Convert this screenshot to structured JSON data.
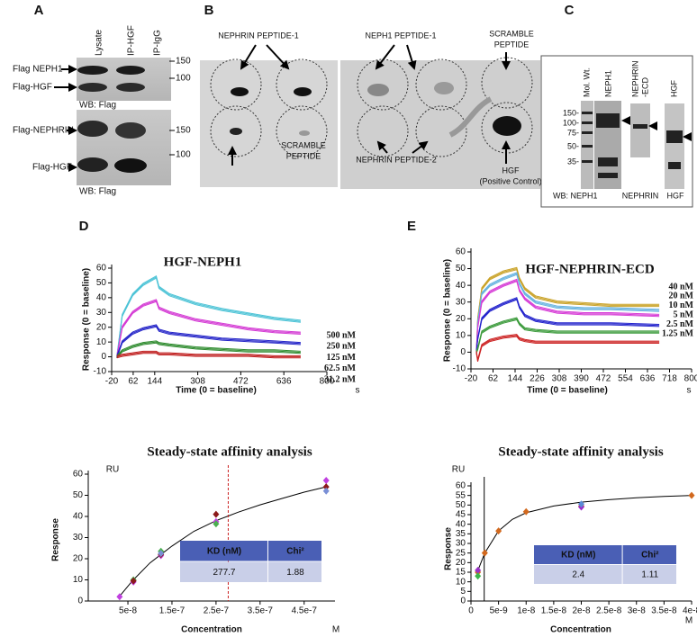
{
  "panels": {
    "A": {
      "label": "A",
      "lanes": [
        "Lysate",
        "IP-HGF",
        "IP-IgG"
      ],
      "blot1": {
        "bands": [
          "Flag NEPH1",
          "Flag-HGF"
        ],
        "markers": [
          "150",
          "100"
        ],
        "wb": "WB: Flag"
      },
      "blot2": {
        "bands": [
          "Flag-NEPHRIN",
          "Flag-HGF"
        ],
        "markers": [
          "150",
          "100"
        ],
        "wb": "WB: Flag"
      }
    },
    "B": {
      "label": "B",
      "nephrin_peptide_1": "NEPHRIN PEPTIDE-1",
      "neph1_peptide_1": "NEPH1 PEPTIDE-1",
      "scramble_top": [
        "SCRAMBLE",
        "PEPTIDE"
      ],
      "scramble_bottom": [
        "SCRAMBLE",
        "PEPTIDE"
      ],
      "nephrin_peptide_2": "NEPHRIN PEPTIDE-2",
      "hgf": [
        "HGF",
        "(Positive Control)"
      ]
    },
    "C": {
      "label": "C",
      "lanes": [
        "Mol. Wt.",
        "NEPH1",
        "HGF"
      ],
      "nephrin_lane": [
        "NEPHRIN",
        "-ECD"
      ],
      "markers": [
        "150-",
        "100-",
        "75-",
        "50-",
        "35-"
      ],
      "wb": [
        "WB: NEPH1",
        "NEPHRIN",
        "HGF"
      ]
    }
  },
  "chart_data": [
    {
      "type": "line",
      "panel": "D",
      "title": "HGF-NEPH1",
      "xlabel": "Time (0 = baseline)",
      "xunit": "s",
      "ylabel": "Response (0 = baseline)",
      "xlim": [
        -20,
        800
      ],
      "xticks": [
        -20,
        62,
        144,
        308,
        472,
        636,
        800
      ],
      "ylim": [
        -10,
        60
      ],
      "yticks": [
        -10,
        0,
        10,
        20,
        30,
        40,
        50,
        60
      ],
      "x": [
        0,
        20,
        60,
        100,
        150,
        160,
        200,
        300,
        400,
        500,
        600,
        700
      ],
      "series": [
        {
          "name": "500 nM",
          "color": "#4cc3d6",
          "values": [
            0,
            28,
            42,
            49,
            54,
            47,
            42,
            36,
            32,
            29,
            26,
            24
          ]
        },
        {
          "name": "250 nM",
          "color": "#d43ad4",
          "values": [
            0,
            20,
            30,
            35,
            38,
            33,
            30,
            25,
            22,
            19,
            17,
            16
          ]
        },
        {
          "name": "125 nM",
          "color": "#2424c8",
          "values": [
            0,
            10,
            16,
            19,
            21,
            18,
            16,
            14,
            12,
            11,
            10,
            9
          ]
        },
        {
          "name": "62.5 nM",
          "color": "#2e8b2e",
          "values": [
            0,
            4,
            7,
            9,
            10,
            9,
            8,
            6,
            5,
            4,
            4,
            3
          ]
        },
        {
          "name": "31.2 nM",
          "color": "#c02020",
          "values": [
            0,
            1,
            2,
            3,
            3,
            2,
            2,
            1,
            1,
            1,
            0,
            0
          ]
        }
      ]
    },
    {
      "type": "line",
      "panel": "E",
      "title": "HGF-NEPHRIN-ECD",
      "xlabel": "Time (0 = baseline)",
      "xunit": "s",
      "ylabel": "Response (0 = baseline)",
      "xlim": [
        -20,
        800
      ],
      "xticks": [
        -20,
        62,
        144,
        226,
        308,
        390,
        472,
        554,
        636,
        718,
        800
      ],
      "ylim": [
        -10,
        60
      ],
      "yticks": [
        -10,
        0,
        10,
        20,
        30,
        40,
        50,
        60
      ],
      "x": [
        0,
        5,
        20,
        50,
        100,
        150,
        160,
        180,
        220,
        300,
        400,
        500,
        680
      ],
      "series": [
        {
          "name": "40 nM",
          "color": "#c9a227",
          "values": [
            0,
            20,
            38,
            44,
            48,
            50,
            44,
            38,
            33,
            30,
            29,
            28,
            28
          ]
        },
        {
          "name": "20 nM",
          "color": "#66b3e0",
          "values": [
            0,
            18,
            35,
            40,
            44,
            47,
            41,
            35,
            30,
            27,
            26,
            26,
            25
          ]
        },
        {
          "name": "10 nM",
          "color": "#d63bd6",
          "values": [
            0,
            15,
            30,
            36,
            40,
            43,
            37,
            32,
            27,
            24,
            23,
            23,
            22
          ]
        },
        {
          "name": "5 nM",
          "color": "#2222cc",
          "values": [
            0,
            8,
            20,
            25,
            29,
            32,
            27,
            22,
            19,
            17,
            17,
            17,
            16
          ]
        },
        {
          "name": "2.5 nM",
          "color": "#3a9a3a",
          "values": [
            0,
            2,
            12,
            15,
            18,
            20,
            17,
            14,
            13,
            12,
            12,
            12,
            12
          ]
        },
        {
          "name": "1.25 nM",
          "color": "#cc2222",
          "values": [
            0,
            -5,
            4,
            7,
            9,
            10,
            8,
            7,
            6,
            6,
            6,
            6,
            6
          ]
        }
      ]
    },
    {
      "type": "scatter",
      "title": "Steady-state affinity analysis",
      "yunit": "RU",
      "ylabel": "Response",
      "xlabel": "Concentration",
      "xunit": "M",
      "xlim": [
        -4e-08,
        5.2e-07
      ],
      "xticks": [
        5e-08,
        1.5e-07,
        2.5e-07,
        3.5e-07,
        4.5e-07
      ],
      "ylim": [
        0,
        60
      ],
      "yticks": [
        0,
        10,
        20,
        30,
        40,
        50,
        60
      ],
      "series": [
        {
          "color": "#c040e0",
          "x": [
            3.12e-08,
            6.25e-08,
            1.25e-07,
            2.5e-07,
            5e-07
          ],
          "values": [
            2,
            9,
            21.5,
            37.5,
            57
          ]
        },
        {
          "color": "#4caf50",
          "x": [
            6.25e-08,
            1.25e-07,
            2.5e-07
          ],
          "values": [
            10,
            23.5,
            36.5
          ]
        },
        {
          "color": "#8b1a1a",
          "x": [
            6.25e-08,
            1.25e-07,
            2.5e-07,
            5e-07
          ],
          "values": [
            9.5,
            22,
            41,
            54
          ]
        },
        {
          "color": "#7a8fd6",
          "x": [
            1.25e-07,
            5e-07
          ],
          "values": [
            22.5,
            52
          ]
        }
      ],
      "fit": {
        "color": "#000000",
        "x": [
          3e-08,
          6e-08,
          1e-07,
          1.25e-07,
          1.5e-07,
          2e-07,
          2.5e-07,
          3e-07,
          3.5e-07,
          4e-07,
          4.5e-07,
          5e-07
        ],
        "values": [
          2,
          9.5,
          18,
          22,
          26,
          33,
          38,
          42,
          45.5,
          48.5,
          51.5,
          54
        ]
      },
      "reference_line": {
        "x": 2.777e-07,
        "color": "#cc2222",
        "dashed": true
      },
      "table": {
        "header": [
          "KD (nM)",
          "Chi²"
        ],
        "rows": [
          [
            "277.7",
            "1.88"
          ]
        ]
      }
    },
    {
      "type": "scatter",
      "title": "Steady-state affinity analysis",
      "yunit": "RU",
      "ylabel": "Response",
      "xlabel": "Concentration",
      "xunit": "M",
      "xlim": [
        0,
        4e-08
      ],
      "xticks": [
        0,
        5e-09,
        1e-08,
        1.5e-08,
        2e-08,
        2.5e-08,
        3e-08,
        3.5e-08,
        4e-08
      ],
      "ylim": [
        0,
        60
      ],
      "yticks": [
        0,
        5,
        10,
        15,
        20,
        25,
        30,
        35,
        40,
        45,
        50,
        55,
        60
      ],
      "series": [
        {
          "color": "#d2691e",
          "x": [
            1.25e-09,
            2.5e-09,
            5e-09,
            1e-08,
            2e-08,
            4e-08
          ],
          "values": [
            15,
            25,
            36.5,
            46.5,
            49.5,
            55
          ]
        },
        {
          "color": "#9b30c8",
          "x": [
            1.25e-09,
            2e-08
          ],
          "values": [
            16,
            49
          ]
        },
        {
          "color": "#3cb44b",
          "x": [
            1.25e-09
          ],
          "values": [
            13
          ]
        },
        {
          "color": "#5a8ad6",
          "x": [
            2e-08
          ],
          "values": [
            50.5
          ]
        }
      ],
      "fit": {
        "color": "#000000",
        "x": [
          1e-09,
          2.5e-09,
          5e-09,
          7.5e-09,
          1e-08,
          1.5e-08,
          2e-08,
          2.5e-08,
          3e-08,
          3.5e-08,
          4e-08
        ],
        "values": [
          14,
          25,
          36.5,
          42.5,
          46,
          49.5,
          51.5,
          52.8,
          53.8,
          54.5,
          55
        ]
      },
      "reference_line": {
        "x": 2.4e-09,
        "color": "#000000",
        "dashed": false
      },
      "table": {
        "header": [
          "KD (nM)",
          "Chi²"
        ],
        "rows": [
          [
            "2.4",
            "1.11"
          ]
        ]
      }
    }
  ]
}
